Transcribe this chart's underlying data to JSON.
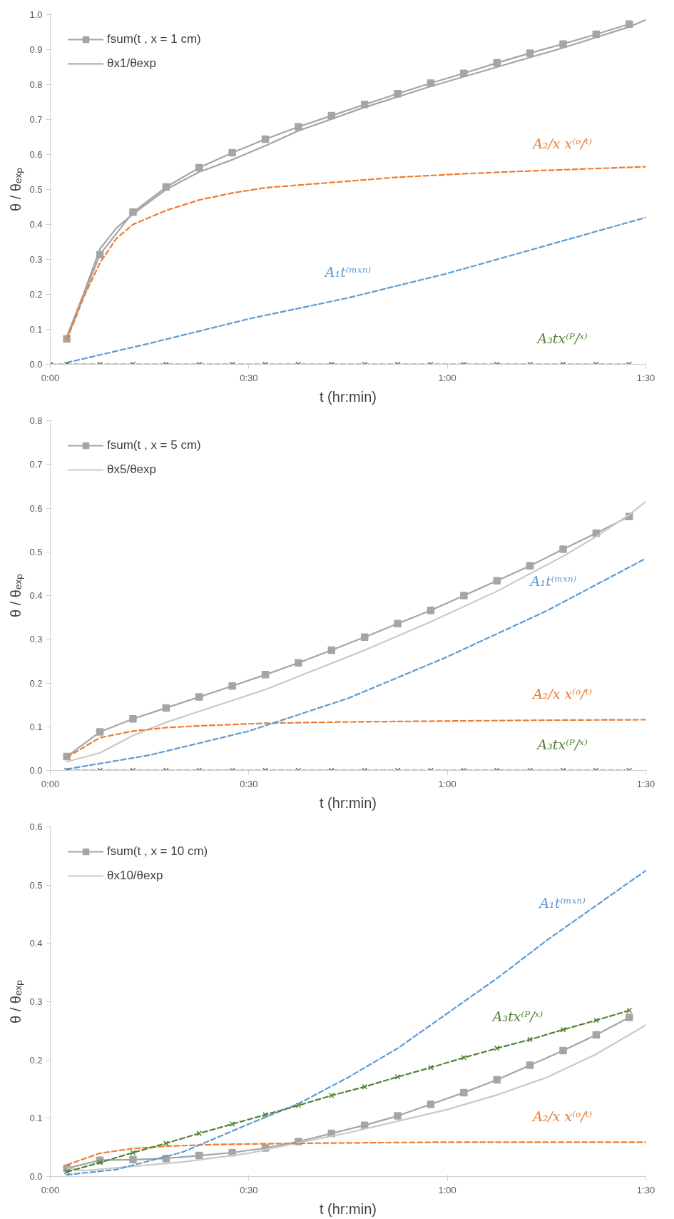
{
  "chart_data": [
    {
      "type": "line",
      "xlabel": "t (hr:min)",
      "ylabel": "θ / θₑₓₚ",
      "xlim": [
        0,
        90
      ],
      "xticks": [
        {
          "value": 0,
          "label": "0:00"
        },
        {
          "value": 30,
          "label": "0:30"
        },
        {
          "value": 60,
          "label": "1:00"
        },
        {
          "value": 90,
          "label": "1:30"
        }
      ],
      "ylim": [
        0,
        1.0
      ],
      "yticks": [
        {
          "value": 0,
          "label": "0.0"
        },
        {
          "value": 0.1,
          "label": "0.1"
        },
        {
          "value": 0.2,
          "label": "0.2"
        },
        {
          "value": 0.3,
          "label": "0.3"
        },
        {
          "value": 0.4,
          "label": "0.4"
        },
        {
          "value": 0.5,
          "label": "0.5"
        },
        {
          "value": 0.6,
          "label": "0.6"
        },
        {
          "value": 0.7,
          "label": "0.7"
        },
        {
          "value": 0.8,
          "label": "0.8"
        },
        {
          "value": 0.9,
          "label": "0.9"
        },
        {
          "value": 1.0,
          "label": "1.0"
        }
      ],
      "grid": false,
      "legend": "top left",
      "series": [
        {
          "name": "fsum(t , x = 1 cm)",
          "color": "#a5a5a5",
          "marker": "square",
          "line_style": "solid",
          "x": [
            2.5,
            7.5,
            12.5,
            17.5,
            22.5,
            27.5,
            32.5,
            37.5,
            42.5,
            47.5,
            52.5,
            57.5,
            62.5,
            67.5,
            72.5,
            77.5,
            82.5,
            87.5
          ],
          "values": [
            0.073,
            0.314,
            0.435,
            0.507,
            0.562,
            0.605,
            0.644,
            0.679,
            0.711,
            0.743,
            0.774,
            0.804,
            0.832,
            0.862,
            0.89,
            0.916,
            0.944,
            0.973
          ]
        },
        {
          "name": "θx1/θexp",
          "color": "#a5a5a5",
          "marker": "none",
          "line_style": "solid",
          "x": [
            2.5,
            5,
            7.5,
            10,
            12.5,
            17.5,
            22.5,
            27.5,
            32.5,
            37.5,
            47.5,
            57.5,
            67.5,
            77.5,
            87.5,
            90
          ],
          "values": [
            0.08,
            0.2,
            0.33,
            0.39,
            0.43,
            0.5,
            0.55,
            0.585,
            0.625,
            0.668,
            0.735,
            0.795,
            0.85,
            0.905,
            0.965,
            0.985
          ]
        },
        {
          "name": "A₂/x x⁽ᵒ/ᵗ⁾",
          "color": "#ed7d31",
          "marker": "none",
          "line_style": "dashed",
          "x": [
            2.5,
            5,
            7.5,
            10,
            12.5,
            17.5,
            22.5,
            27.5,
            32.5,
            42.5,
            52.5,
            62.5,
            72.5,
            82.5,
            90
          ],
          "values": [
            0.07,
            0.19,
            0.29,
            0.36,
            0.4,
            0.44,
            0.47,
            0.49,
            0.505,
            0.52,
            0.535,
            0.545,
            0.553,
            0.56,
            0.565
          ]
        },
        {
          "name": "A₁t⁽ᵐˣⁿ⁾",
          "color": "#5b9bd5",
          "marker": "none",
          "line_style": "dashed",
          "x": [
            2.5,
            15,
            30,
            45,
            60,
            75,
            90
          ],
          "values": [
            0.005,
            0.06,
            0.13,
            0.19,
            0.26,
            0.34,
            0.42
          ]
        },
        {
          "name": "A₃tx⁽ᴾ/ˣ⁾",
          "color": "#548235",
          "marker": "cross",
          "line_style": "dashed",
          "x": [
            0,
            2.5,
            7.5,
            12.5,
            17.5,
            22.5,
            27.5,
            32.5,
            37.5,
            42.5,
            47.5,
            52.5,
            57.5,
            62.5,
            67.5,
            72.5,
            77.5,
            82.5,
            87.5
          ],
          "values": [
            0,
            0,
            0,
            0,
            0,
            0,
            0,
            0,
            0,
            0,
            0,
            0,
            0,
            0,
            0,
            0,
            0,
            0,
            0
          ]
        }
      ]
    },
    {
      "type": "line",
      "xlabel": "t (hr:min)",
      "ylabel": "θ / θₑₓₚ",
      "xlim": [
        0,
        90
      ],
      "xticks": [
        {
          "value": 0,
          "label": "0:00"
        },
        {
          "value": 30,
          "label": "0:30"
        },
        {
          "value": 60,
          "label": "1:00"
        },
        {
          "value": 90,
          "label": "1:30"
        }
      ],
      "ylim": [
        0,
        0.8
      ],
      "yticks": [
        {
          "value": 0,
          "label": "0.0"
        },
        {
          "value": 0.1,
          "label": "0.1"
        },
        {
          "value": 0.2,
          "label": "0.2"
        },
        {
          "value": 0.3,
          "label": "0.3"
        },
        {
          "value": 0.4,
          "label": "0.4"
        },
        {
          "value": 0.5,
          "label": "0.5"
        },
        {
          "value": 0.6,
          "label": "0.6"
        },
        {
          "value": 0.7,
          "label": "0.7"
        },
        {
          "value": 0.8,
          "label": "0.8"
        }
      ],
      "grid": false,
      "legend": "top left",
      "series": [
        {
          "name": "fsum(t , x = 5 cm)",
          "color": "#a5a5a5",
          "marker": "square",
          "line_style": "solid",
          "x": [
            2.5,
            7.5,
            12.5,
            17.5,
            22.5,
            27.5,
            32.5,
            37.5,
            42.5,
            47.5,
            52.5,
            57.5,
            62.5,
            67.5,
            72.5,
            77.5,
            82.5,
            87.5
          ],
          "values": [
            0.032,
            0.088,
            0.118,
            0.143,
            0.168,
            0.193,
            0.219,
            0.246,
            0.275,
            0.305,
            0.336,
            0.366,
            0.4,
            0.434,
            0.468,
            0.506,
            0.543,
            0.581
          ]
        },
        {
          "name": "θx5/θexp",
          "color": "#c9c9c9",
          "marker": "none",
          "line_style": "solid",
          "x": [
            2.5,
            7.5,
            12.5,
            17.5,
            22.5,
            27.5,
            32.5,
            37.5,
            47.5,
            57.5,
            67.5,
            77.5,
            82.5,
            87.5,
            90
          ],
          "values": [
            0.02,
            0.04,
            0.08,
            0.11,
            0.135,
            0.16,
            0.185,
            0.215,
            0.275,
            0.34,
            0.41,
            0.49,
            0.535,
            0.585,
            0.615
          ]
        },
        {
          "name": "A₂/x x⁽ᵒ/ᵗ⁾",
          "color": "#ed7d31",
          "marker": "none",
          "line_style": "dashed",
          "x": [
            2.5,
            7.5,
            12.5,
            17.5,
            22.5,
            32.5,
            45,
            60,
            75,
            90
          ],
          "values": [
            0.03,
            0.075,
            0.09,
            0.098,
            0.102,
            0.108,
            0.111,
            0.113,
            0.115,
            0.116
          ]
        },
        {
          "name": "A₁t⁽ᵐˣⁿ⁾",
          "color": "#5b9bd5",
          "marker": "none",
          "line_style": "dashed",
          "x": [
            2.5,
            15,
            30,
            45,
            60,
            75,
            90
          ],
          "values": [
            0.003,
            0.035,
            0.09,
            0.165,
            0.26,
            0.365,
            0.485
          ]
        },
        {
          "name": "A₃tx⁽ᴾ/ˣ⁾",
          "color": "#548235",
          "marker": "cross",
          "line_style": "dashed",
          "x": [
            2.5,
            7.5,
            12.5,
            17.5,
            22.5,
            27.5,
            32.5,
            37.5,
            42.5,
            47.5,
            52.5,
            57.5,
            62.5,
            67.5,
            72.5,
            77.5,
            82.5,
            87.5
          ],
          "values": [
            0,
            0,
            0,
            0,
            0,
            0,
            0,
            0,
            0,
            0,
            0,
            0,
            0,
            0,
            0,
            0,
            0,
            0
          ]
        }
      ]
    },
    {
      "type": "line",
      "xlabel": "t (hr:min)",
      "ylabel": "θ / θₑₓₚ",
      "xlim": [
        0,
        90
      ],
      "xticks": [
        {
          "value": 0,
          "label": "0:00"
        },
        {
          "value": 30,
          "label": "0:30"
        },
        {
          "value": 60,
          "label": "1:00"
        },
        {
          "value": 90,
          "label": "1:30"
        }
      ],
      "ylim": [
        0,
        0.6
      ],
      "yticks": [
        {
          "value": 0,
          "label": "0.0"
        },
        {
          "value": 0.1,
          "label": "0.1"
        },
        {
          "value": 0.2,
          "label": "0.2"
        },
        {
          "value": 0.3,
          "label": "0.3"
        },
        {
          "value": 0.4,
          "label": "0.4"
        },
        {
          "value": 0.5,
          "label": "0.5"
        },
        {
          "value": 0.6,
          "label": "0.6"
        }
      ],
      "grid": false,
      "legend": "top left",
      "series": [
        {
          "name": "fsum(t , x = 10 cm)",
          "color": "#a5a5a5",
          "marker": "square",
          "line_style": "solid",
          "x": [
            2.5,
            7.5,
            12.5,
            17.5,
            22.5,
            27.5,
            32.5,
            37.5,
            42.5,
            47.5,
            52.5,
            57.5,
            62.5,
            67.5,
            72.5,
            77.5,
            82.5,
            87.5
          ],
          "values": [
            0.014,
            0.028,
            0.029,
            0.031,
            0.036,
            0.041,
            0.049,
            0.06,
            0.074,
            0.088,
            0.104,
            0.124,
            0.144,
            0.166,
            0.191,
            0.216,
            0.243,
            0.273
          ]
        },
        {
          "name": "θx10/θexp",
          "color": "#c9c9c9",
          "marker": "none",
          "line_style": "solid",
          "x": [
            2.5,
            5,
            10,
            20,
            30,
            37.5,
            45,
            52.5,
            60,
            67.5,
            75,
            82.5,
            90
          ],
          "values": [
            0.015,
            0.01,
            0.015,
            0.025,
            0.04,
            0.058,
            0.075,
            0.095,
            0.115,
            0.14,
            0.17,
            0.21,
            0.26
          ]
        },
        {
          "name": "A₂/x x⁽ᵒ/ᵗ⁾",
          "color": "#ed7d31",
          "marker": "none",
          "line_style": "dashed",
          "x": [
            2.5,
            7.5,
            12.5,
            17.5,
            25,
            37.5,
            60,
            90
          ],
          "values": [
            0.02,
            0.04,
            0.048,
            0.052,
            0.055,
            0.057,
            0.059,
            0.059
          ]
        },
        {
          "name": "A₁t⁽ᵐˣⁿ⁾",
          "color": "#5b9bd5",
          "marker": "none",
          "line_style": "dashed",
          "x": [
            2.5,
            10,
            20,
            30,
            37.5,
            45,
            52.5,
            60,
            67.5,
            75,
            82.5,
            90
          ],
          "values": [
            0.003,
            0.012,
            0.042,
            0.09,
            0.125,
            0.17,
            0.22,
            0.28,
            0.34,
            0.405,
            0.465,
            0.525
          ]
        },
        {
          "name": "A₃tx⁽ᴾ/ˣ⁾",
          "color": "#548235",
          "marker": "cross",
          "line_style": "dashed",
          "x": [
            2.5,
            7.5,
            12.5,
            17.5,
            22.5,
            27.5,
            32.5,
            37.5,
            42.5,
            47.5,
            52.5,
            57.5,
            62.5,
            67.5,
            72.5,
            77.5,
            82.5,
            87.5
          ],
          "values": [
            0.008,
            0.024,
            0.041,
            0.057,
            0.074,
            0.09,
            0.106,
            0.122,
            0.139,
            0.154,
            0.171,
            0.187,
            0.204,
            0.22,
            0.235,
            0.252,
            0.268,
            0.285
          ]
        }
      ]
    }
  ]
}
